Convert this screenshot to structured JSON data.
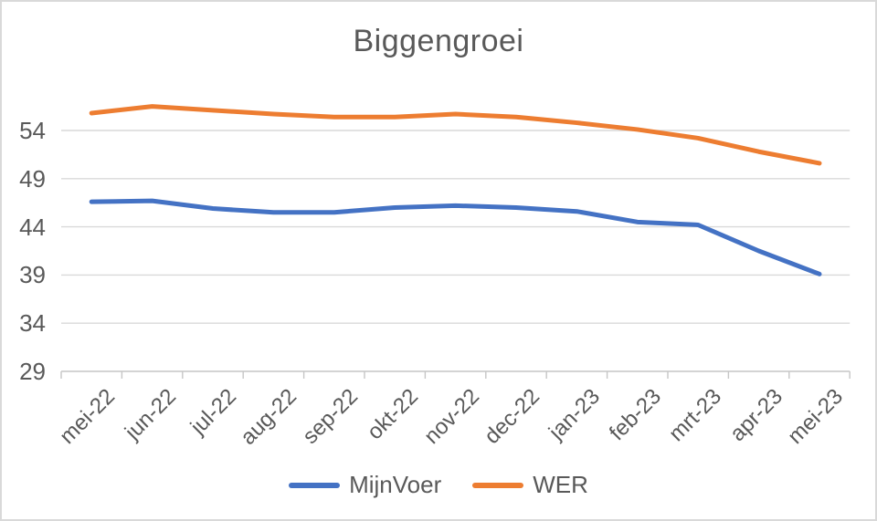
{
  "chart_data": {
    "type": "line",
    "title": "Biggengroei",
    "categories": [
      "mei-22",
      "jun-22",
      "jul-22",
      "aug-22",
      "sep-22",
      "okt-22",
      "nov-22",
      "dec-22",
      "jan-23",
      "feb-23",
      "mrt-23",
      "apr-23",
      "mei-23"
    ],
    "series": [
      {
        "name": "MijnVoer",
        "color": "#4472C4",
        "values": [
          46.6,
          46.7,
          45.9,
          45.5,
          45.5,
          46.0,
          46.2,
          46.0,
          45.6,
          44.5,
          44.2,
          41.5,
          39.1
        ]
      },
      {
        "name": "WER",
        "color": "#ED7D31",
        "values": [
          55.8,
          56.5,
          56.1,
          55.7,
          55.4,
          55.4,
          55.7,
          55.4,
          54.8,
          54.1,
          53.2,
          51.8,
          50.6
        ]
      }
    ],
    "xlabel": "",
    "ylabel": "",
    "ylim": [
      29,
      58.5
    ],
    "yticks": [
      29,
      34,
      39,
      44,
      49,
      54
    ],
    "grid": true,
    "legend_position": "bottom"
  },
  "colors": {
    "text": "#595959",
    "gridline": "#D9D9D9",
    "axis": "#C6C6C6",
    "background": "#FFFFFF",
    "border": "#D9D9D9"
  }
}
